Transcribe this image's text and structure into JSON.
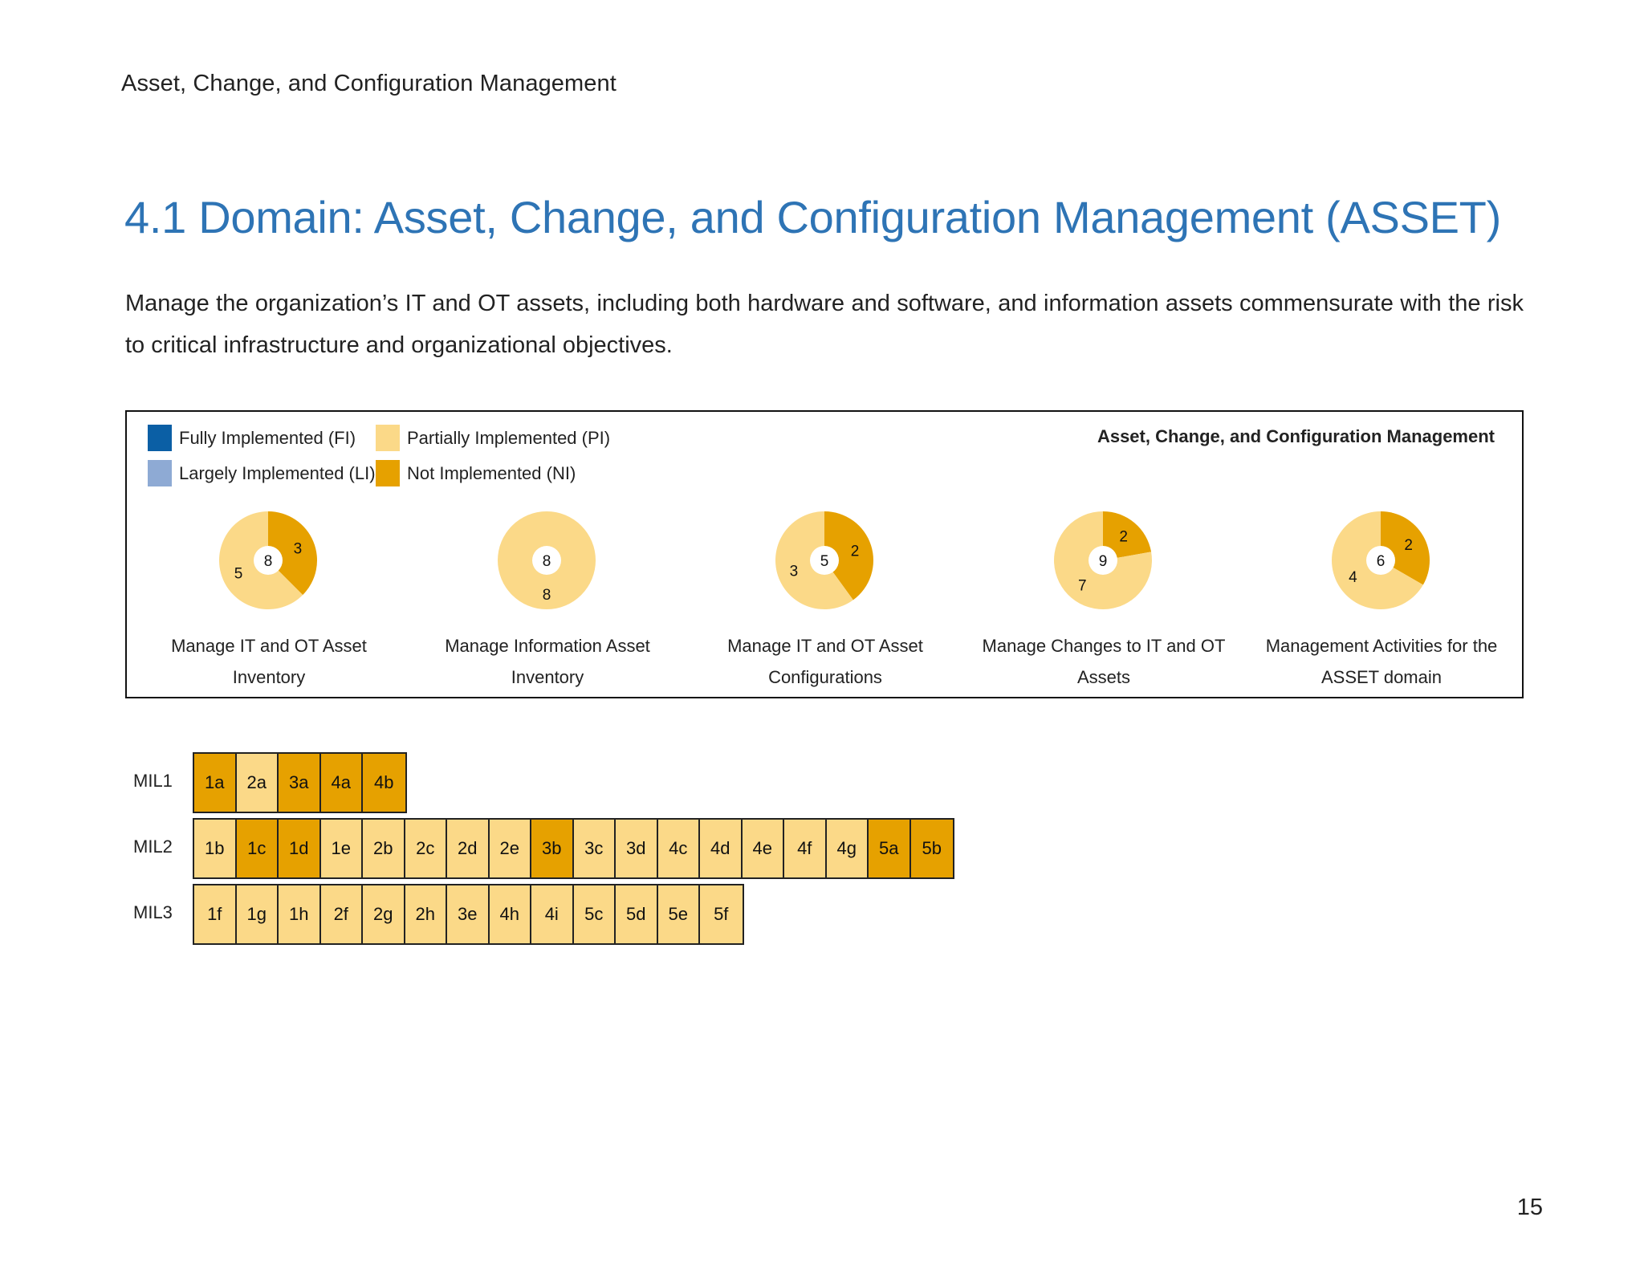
{
  "running_header": "Asset, Change, and Configuration Management",
  "title": "4.1 Domain: Asset, Change, and Configuration Management (ASSET)",
  "intro": "Manage the organization’s IT and OT assets, including both hardware and software, and information assets commensurate with the risk to critical infrastructure and organizational objectives.",
  "colors": {
    "FI": "#0b5fa5",
    "LI": "#8eaad4",
    "PI": "#fbd988",
    "NI": "#e6a100"
  },
  "chart_data": {
    "type": "pie",
    "title": "Asset, Change, and Configuration Management",
    "legend": [
      {
        "key": "FI",
        "label": "Fully Implemented (FI)"
      },
      {
        "key": "LI",
        "label": "Largely Implemented (LI)"
      },
      {
        "key": "PI",
        "label": "Partially Implemented (PI)"
      },
      {
        "key": "NI",
        "label": "Not Implemented (NI)"
      }
    ],
    "pies": [
      {
        "label": "Manage IT and OT Asset Inventory",
        "total": "8",
        "slices": [
          {
            "key": "NI",
            "value": 3
          },
          {
            "key": "PI",
            "value": 5
          }
        ]
      },
      {
        "label": "Manage Information Asset Inventory",
        "total": "8",
        "slices": [
          {
            "key": "PI",
            "value": 8
          }
        ]
      },
      {
        "label": "Manage IT and OT Asset Configurations",
        "total": "5",
        "slices": [
          {
            "key": "NI",
            "value": 2
          },
          {
            "key": "PI",
            "value": 3
          }
        ]
      },
      {
        "label": "Manage Changes to IT and OT Assets",
        "total": "9",
        "slices": [
          {
            "key": "NI",
            "value": 2
          },
          {
            "key": "PI",
            "value": 7
          }
        ]
      },
      {
        "label": "Management Activities for the ASSET domain",
        "total": "6",
        "slices": [
          {
            "key": "NI",
            "value": 2
          },
          {
            "key": "PI",
            "value": 4
          }
        ]
      }
    ]
  },
  "mil_rows": [
    {
      "label": "MIL1",
      "cells": [
        {
          "id": "1a",
          "status": "NI"
        },
        {
          "id": "2a",
          "status": "PI"
        },
        {
          "id": "3a",
          "status": "NI"
        },
        {
          "id": "4a",
          "status": "NI"
        },
        {
          "id": "4b",
          "status": "NI"
        }
      ]
    },
    {
      "label": "MIL2",
      "cells": [
        {
          "id": "1b",
          "status": "PI"
        },
        {
          "id": "1c",
          "status": "NI"
        },
        {
          "id": "1d",
          "status": "NI"
        },
        {
          "id": "1e",
          "status": "PI"
        },
        {
          "id": "2b",
          "status": "PI"
        },
        {
          "id": "2c",
          "status": "PI"
        },
        {
          "id": "2d",
          "status": "PI"
        },
        {
          "id": "2e",
          "status": "PI"
        },
        {
          "id": "3b",
          "status": "NI"
        },
        {
          "id": "3c",
          "status": "PI"
        },
        {
          "id": "3d",
          "status": "PI"
        },
        {
          "id": "4c",
          "status": "PI"
        },
        {
          "id": "4d",
          "status": "PI"
        },
        {
          "id": "4e",
          "status": "PI"
        },
        {
          "id": "4f",
          "status": "PI"
        },
        {
          "id": "4g",
          "status": "PI"
        },
        {
          "id": "5a",
          "status": "NI"
        },
        {
          "id": "5b",
          "status": "NI"
        }
      ]
    },
    {
      "label": "MIL3",
      "cells": [
        {
          "id": "1f",
          "status": "PI"
        },
        {
          "id": "1g",
          "status": "PI"
        },
        {
          "id": "1h",
          "status": "PI"
        },
        {
          "id": "2f",
          "status": "PI"
        },
        {
          "id": "2g",
          "status": "PI"
        },
        {
          "id": "2h",
          "status": "PI"
        },
        {
          "id": "3e",
          "status": "PI"
        },
        {
          "id": "4h",
          "status": "PI"
        },
        {
          "id": "4i",
          "status": "PI"
        },
        {
          "id": "5c",
          "status": "PI"
        },
        {
          "id": "5d",
          "status": "PI"
        },
        {
          "id": "5e",
          "status": "PI"
        },
        {
          "id": "5f",
          "status": "PI"
        }
      ]
    }
  ],
  "page_number": "15"
}
